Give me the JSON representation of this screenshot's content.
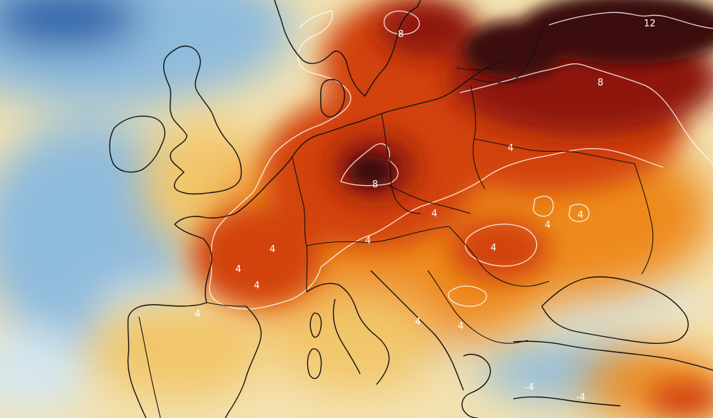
{
  "map": {
    "colors": {
      "cold_strong": "#1e5fa8",
      "cold": "#8fbbdd",
      "cold_light": "#d6e6ee",
      "neutral": "#f6f0cf",
      "warm_light": "#f2c66a",
      "warm": "#ee8a1e",
      "hot": "#d2420c",
      "very_hot": "#8e1808",
      "extreme": "#3a0c0c",
      "contour_line": "#ffffff",
      "coastline": "#111111"
    },
    "contour_labels": {
      "l1": "12",
      "l2": "8",
      "l3": "8",
      "l4": "8",
      "l5": "4",
      "l6": "4",
      "l7": "4",
      "l8": "4",
      "l9": "4",
      "l10": "4",
      "l11": "4",
      "l12": "4",
      "l13": "4",
      "l14": "4",
      "l15": "4",
      "l16": "4",
      "l17": "-4",
      "l18": "-4"
    }
  }
}
